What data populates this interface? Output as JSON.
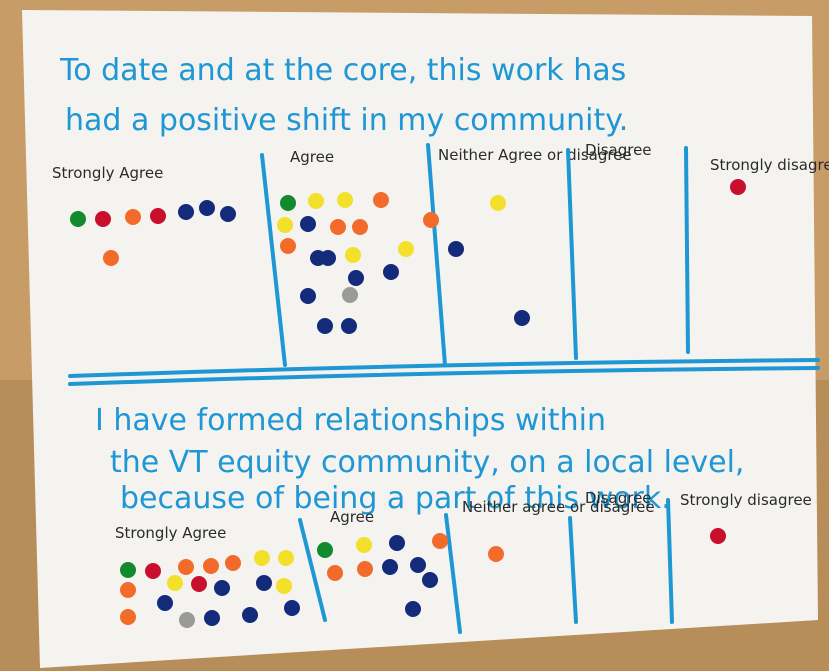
{
  "poster": {
    "question_1": {
      "title": "To date and at the core, this work has had a positive shift in my community.",
      "columns": [
        "Strongly Agree",
        "Agree",
        "Neither Agree or disagree",
        "Disagree",
        "Strongly disagree"
      ]
    },
    "question_2": {
      "title": "I have formed relationships within the VT equity community, on a local level, because of being a part of this work.",
      "columns": [
        "Strongly Agree",
        "Agree",
        "Neither agree or disagree",
        "Disagree",
        "Strongly disagree"
      ]
    }
  }
}
